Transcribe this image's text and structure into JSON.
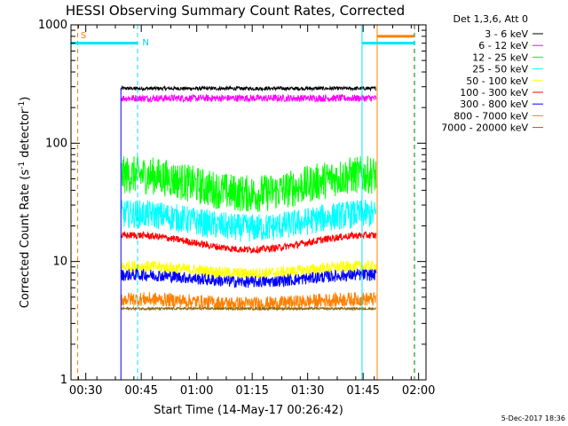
{
  "chart_data": {
    "type": "line",
    "title": "HESSI Observing Summary Count Rates, Corrected",
    "xlabel": "Start Time (14-May-17 00:26:42)",
    "ylabel_parts": [
      "Corrected Count Rate (s",
      "-1",
      " detector",
      "-1",
      ")"
    ],
    "yscale": "log",
    "ylim": [
      1,
      1000
    ],
    "xlim_minutes": [
      26,
      122
    ],
    "x_ticks": [
      {
        "min": 30,
        "label": "00:30"
      },
      {
        "min": 45,
        "label": "00:45"
      },
      {
        "min": 60,
        "label": "01:00"
      },
      {
        "min": 75,
        "label": "01:15"
      },
      {
        "min": 90,
        "label": "01:30"
      },
      {
        "min": 105,
        "label": "01:45"
      },
      {
        "min": 120,
        "label": "02:00"
      }
    ],
    "y_ticks": [
      {
        "v": 1,
        "label": "1"
      },
      {
        "v": 10,
        "label": "10"
      },
      {
        "v": 100,
        "label": "100"
      },
      {
        "v": 1000,
        "label": "1000"
      }
    ],
    "legend_title": "Det 1,3,6, Att 0",
    "series": [
      {
        "name": "3 - 6 keV",
        "color": "#000000",
        "level": 290,
        "spread": 0.015,
        "wave": 0
      },
      {
        "name": "6 - 12 keV",
        "color": "#ff00ff",
        "level": 240,
        "spread": 0.03,
        "wave": 0
      },
      {
        "name": "12 - 25 keV",
        "color": "#00ff00",
        "level": 45,
        "spread": 0.16,
        "wave": 0.08
      },
      {
        "name": "25 - 50 keV",
        "color": "#00ffff",
        "level": 22,
        "spread": 0.12,
        "wave": 0.06
      },
      {
        "name": "50 - 100 keV",
        "color": "#ffff00",
        "level": 8.5,
        "spread": 0.05,
        "wave": 0.03
      },
      {
        "name": "100 - 300 keV",
        "color": "#ff0000",
        "level": 14.5,
        "spread": 0.03,
        "wave": 0.06
      },
      {
        "name": "300 - 800 keV",
        "color": "#0000ff",
        "level": 7.2,
        "spread": 0.05,
        "wave": 0.03
      },
      {
        "name": "800 - 7000 keV",
        "color": "#ff8000",
        "level": 4.6,
        "spread": 0.06,
        "wave": 0.02
      },
      {
        "name": "7000 - 20000 keV",
        "color": "#8b6914",
        "level": 4.0,
        "spread": 0.01,
        "wave": 0
      }
    ],
    "data_range_minutes": [
      39.5,
      108.5
    ],
    "saa_label": "S",
    "night_label": "N",
    "markers": {
      "cyan_vertical_solid": [
        26,
        104.7
      ],
      "cyan_vertical_dashed": [
        44,
        119
      ],
      "orange_vertical_solid": [
        108.8
      ],
      "orange_vertical_dashed": [
        27.8,
        118.8
      ],
      "night_bar_minutes": [
        [
          26,
          44
        ],
        [
          104.7,
          119
        ]
      ],
      "night_bar_level": 700,
      "saa_bar_minutes": [
        [
          108.8,
          118.8
        ]
      ],
      "saa_bar_level": 800
    }
  },
  "footer_date": "5-Dec-2017 18:36"
}
